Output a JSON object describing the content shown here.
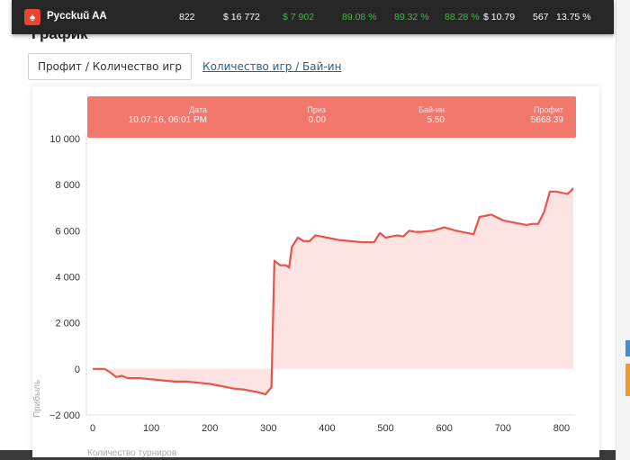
{
  "topbar": {
    "logo_icon": "spade-icon",
    "room_name": "Pycckuŭ AA",
    "stats": [
      {
        "value": "822",
        "color": "white"
      },
      {
        "value": "$ 16 772",
        "color": "white"
      },
      {
        "value": "$ 7 902",
        "color": "green"
      },
      {
        "value": "89.08 %",
        "color": "green"
      },
      {
        "value": "89.32 %",
        "color": "green"
      },
      {
        "value": "88.28 %",
        "color": "green"
      },
      {
        "value": "$ 10.79",
        "color": "white"
      },
      {
        "value": "567",
        "color": "white"
      },
      {
        "value": "13.75 %",
        "color": "white"
      }
    ]
  },
  "section_title": "График",
  "tabs": {
    "active": "Профит / Количество игр",
    "link": "Количество игр / Бай-ин"
  },
  "tooltip": {
    "date_label": "Дата",
    "date_value": "10.07.16, 06:01 PM",
    "prize_label": "Приз",
    "prize_value": "0.00",
    "buyin_label": "Бай-ин",
    "buyin_value": "5.50",
    "profit_label": "Профит",
    "profit_value": "5668.39"
  },
  "chart_data": {
    "type": "area",
    "xlabel": "Количество турниров",
    "ylabel": "Прибыль",
    "xlim": [
      0,
      820
    ],
    "ylim": [
      -2000,
      10000
    ],
    "x_ticks": [
      0,
      100,
      200,
      300,
      400,
      500,
      600,
      700,
      800
    ],
    "y_ticks": [
      -2000,
      0,
      2000,
      4000,
      6000,
      8000,
      10000
    ],
    "y_tick_labels": [
      "−2 000",
      "0",
      "2 000",
      "4 000",
      "6 000",
      "8 000",
      "10 000"
    ],
    "line_color": "#e8534a",
    "fill_color": "#fde3e1",
    "series": [
      {
        "x": [
          0,
          20,
          30,
          40,
          50,
          60,
          80,
          100,
          120,
          140,
          160,
          180,
          200,
          220,
          240,
          260,
          280,
          295,
          300,
          305,
          310,
          320,
          330,
          335,
          340,
          350,
          360,
          370,
          380,
          390,
          400,
          420,
          440,
          460,
          480,
          490,
          500,
          510,
          520,
          530,
          540,
          550,
          560,
          580,
          600,
          620,
          640,
          650,
          660,
          680,
          700,
          720,
          740,
          750,
          760,
          770,
          780,
          790,
          800,
          810,
          815,
          820
        ],
        "y": [
          0,
          0,
          -150,
          -350,
          -300,
          -400,
          -400,
          -450,
          -500,
          -550,
          -550,
          -600,
          -650,
          -750,
          -850,
          -900,
          -1000,
          -1100,
          -950,
          -800,
          4700,
          4500,
          4500,
          4400,
          5300,
          5700,
          5550,
          5550,
          5800,
          5750,
          5700,
          5600,
          5550,
          5500,
          5500,
          5900,
          5700,
          5750,
          5800,
          5750,
          6000,
          5950,
          5950,
          6000,
          6150,
          6000,
          5900,
          5850,
          6600,
          6700,
          6450,
          6350,
          6250,
          6300,
          6300,
          6800,
          7700,
          7700,
          7650,
          7600,
          7700,
          7850
        ]
      }
    ],
    "grid": false,
    "legend": "none"
  }
}
